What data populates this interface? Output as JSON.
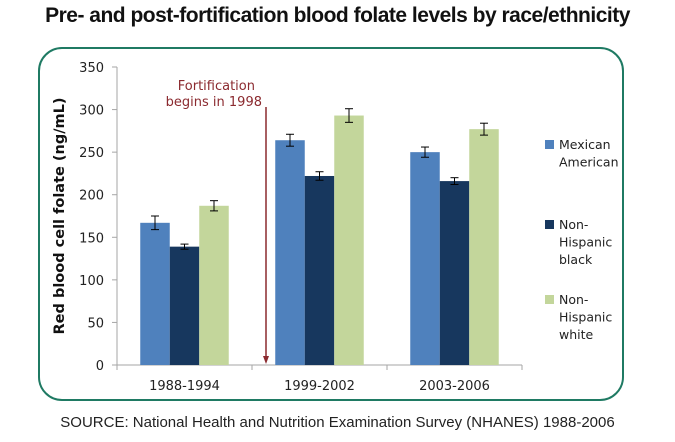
{
  "title": "Pre- and post-fortification blood folate levels by race/ethnicity",
  "source": "SOURCE: National Health and Nutrition Examination Survey (NHANES) 1988-2006",
  "chart_data": {
    "type": "bar",
    "title": "Pre- and post-fortification blood folate levels by race/ethnicity",
    "xlabel": "",
    "ylabel": "Red blood cell folate (ng/mL)",
    "ylim": [
      0,
      350
    ],
    "yticks": [
      0,
      50,
      100,
      150,
      200,
      250,
      300,
      350
    ],
    "grid": false,
    "legend_position": "right",
    "categories": [
      "1988-1994",
      "1999-2002",
      "2003-2006"
    ],
    "series": [
      {
        "name": "Mexican American",
        "legend_lines": [
          "Mexican",
          "American"
        ],
        "color": "#4f81bd",
        "values": [
          167,
          264,
          250
        ],
        "errors": [
          8,
          7,
          6
        ]
      },
      {
        "name": "Non-Hispanic black",
        "legend_lines": [
          "Non-",
          "Hispanic",
          "black"
        ],
        "color": "#17375e",
        "values": [
          139,
          222,
          216
        ],
        "errors": [
          3,
          5,
          4
        ]
      },
      {
        "name": "Non-Hispanic white",
        "legend_lines": [
          "Non-",
          "Hispanic",
          "white"
        ],
        "color": "#c3d69b",
        "values": [
          187,
          293,
          277
        ],
        "errors": [
          6,
          8,
          7
        ]
      }
    ],
    "annotation": {
      "lines": [
        "Fortification",
        "begins in 1998"
      ],
      "color": "#8b2a2f",
      "type": "arrow-down",
      "position_between_categories": [
        "1988-1994",
        "1999-2002"
      ]
    },
    "frame_color": "#1f7a63"
  }
}
